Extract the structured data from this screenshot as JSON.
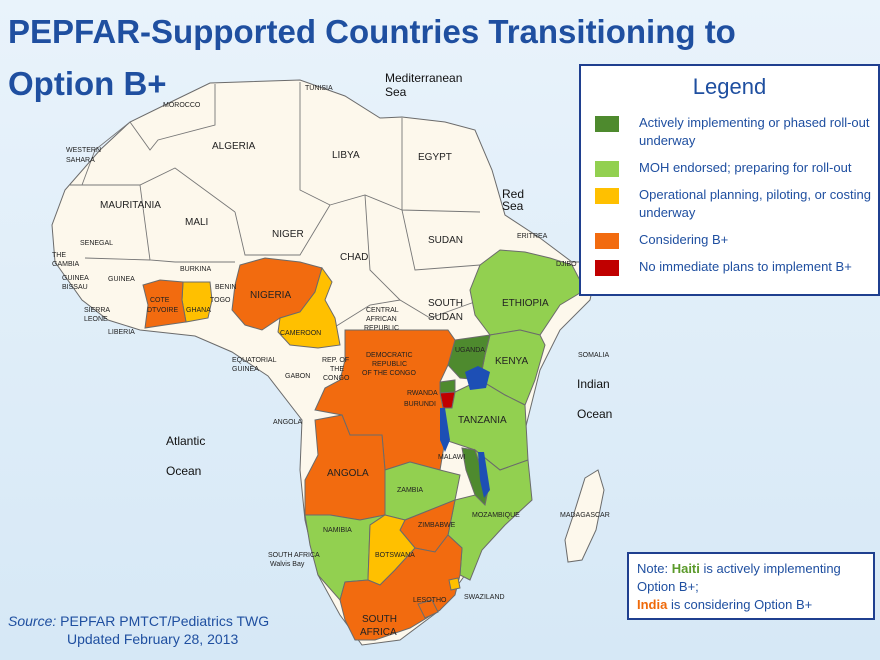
{
  "title": "PEPFAR-Supported Countries Transitioning to Option B+",
  "legend": {
    "title": "Legend",
    "items": [
      {
        "label": "Actively implementing or phased roll-out underway",
        "color": "#4e8a2e"
      },
      {
        "label": "MOH endorsed; preparing for roll-out",
        "color": "#92d050"
      },
      {
        "label": "Operational planning, piloting, or costing underway",
        "color": "#ffc000"
      },
      {
        "label": "Considering B+",
        "color": "#f26b0f"
      },
      {
        "label": "No immediate plans to implement B+",
        "color": "#c00000"
      }
    ]
  },
  "note": {
    "prefix": "Note:",
    "haiti": "Haiti",
    "haiti_text": "is actively implementing Option B+;",
    "india": "India",
    "india_text": "is considering Option B+"
  },
  "source": {
    "key": "Source:",
    "line1": "PEPFAR PMTCT/Pediatrics TWG",
    "line2": "Updated February 28, 2013"
  },
  "water_labels": {
    "mediterranean_1": "Mediterranean",
    "mediterranean_2": "Sea",
    "red_1": "Red",
    "red_2": "Sea",
    "indian_1": "Indian",
    "indian_2": "Ocean",
    "atlantic_1": "Atlantic",
    "atlantic_2": "Ocean"
  },
  "countries": {
    "tunisia": "TUNISIA",
    "morocco": "MOROCCO",
    "algeria": "ALGERIA",
    "libya": "LIBYA",
    "egypt": "EGYPT",
    "western_sahara_1": "WESTERN",
    "western_sahara_2": "SAHARA",
    "mauritania": "MAURITANIA",
    "mali": "MALI",
    "niger": "NIGER",
    "chad": "CHAD",
    "sudan": "SUDAN",
    "eritrea": "ERITREA",
    "djibouti": "DJIBO",
    "senegal": "SENEGAL",
    "gambia_1": "THE",
    "gambia_2": "GAMBIA",
    "guinea": "GUINEA",
    "guinea_bissau_1": "GUINEA",
    "guinea_bissau_2": "BISSAU",
    "sierra_leone_1": "SIERRA",
    "sierra_leone_2": "LEONE",
    "liberia": "LIBERIA",
    "burkina": "BURKINA",
    "benin": "BENIN",
    "togo": "TOGO",
    "cote_divoire_1": "COTE",
    "cote_divoire_2": "DTVOIRE",
    "ghana": "GHANA",
    "nigeria": "NIGERIA",
    "cameroon": "CAMEROON",
    "car_1": "CENTRAL",
    "car_2": "AFRICAN",
    "car_3": "REPUBLIC",
    "south_sudan_1": "SOUTH",
    "south_sudan_2": "SUDAN",
    "ethiopia": "ETHIOPIA",
    "somalia": "SOMALIA",
    "kenya": "KENYA",
    "uganda": "UGANDA",
    "eq_guinea_1": "EQUATORIAL",
    "eq_guinea_2": "GUINEA",
    "gabon": "GABON",
    "rep_congo_1": "REP. OF",
    "rep_congo_2": "THE",
    "rep_congo_3": "CONGO",
    "drc_1": "DEMOCRATIC",
    "drc_2": "REPUBLIC",
    "drc_3": "OF THE CONGO",
    "rwanda": "RWANDA",
    "burundi": "BURUNDI",
    "tanzania": "TANZANIA",
    "angola_small": "ANGOLA",
    "angola": "ANGOLA",
    "malawi": "MALAWI",
    "zambia": "ZAMBIA",
    "mozambique": "MOZAMBIQUE",
    "madagascar": "MADAGASCAR",
    "namibia": "NAMIBIA",
    "zimbabwe": "ZIMBABWE",
    "botswana": "BOTSWANA",
    "south_africa_walvis_1": "SOUTH AFRICA",
    "south_africa_walvis_2": "Walvis Bay",
    "swaziland": "SWAZILAND",
    "lesotho": "LESOTHO",
    "south_africa_1": "SOUTH",
    "south_africa_2": "AFRICA"
  },
  "colors": {
    "neutral": "#fdf8ec",
    "border": "#6b6b6b",
    "lake": "#1d4fb5"
  }
}
